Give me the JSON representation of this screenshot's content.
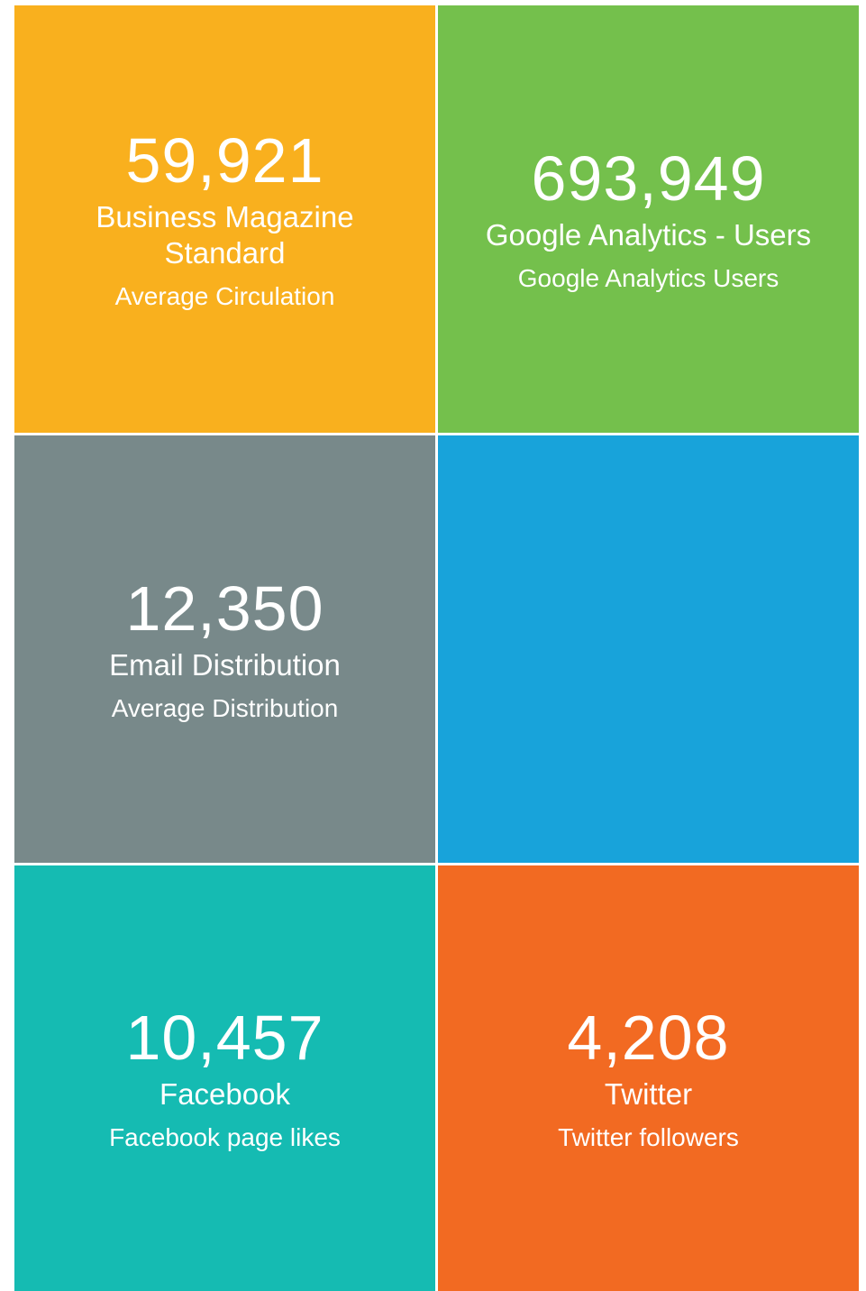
{
  "tiles": [
    {
      "number": "59,921",
      "title": "Business Magazine Standard",
      "subtitle": "Average Circulation"
    },
    {
      "number": "693,949",
      "title": "Google Analytics - Users",
      "subtitle": "Google Analytics Users"
    },
    {
      "number": "12,350",
      "title": "Email Distribution",
      "subtitle": "Average Distribution"
    },
    {
      "number": "10,457",
      "title": "Facebook",
      "subtitle": "Facebook page likes"
    },
    {
      "number": "4,208",
      "title": "Twitter",
      "subtitle": "Twitter followers"
    }
  ]
}
